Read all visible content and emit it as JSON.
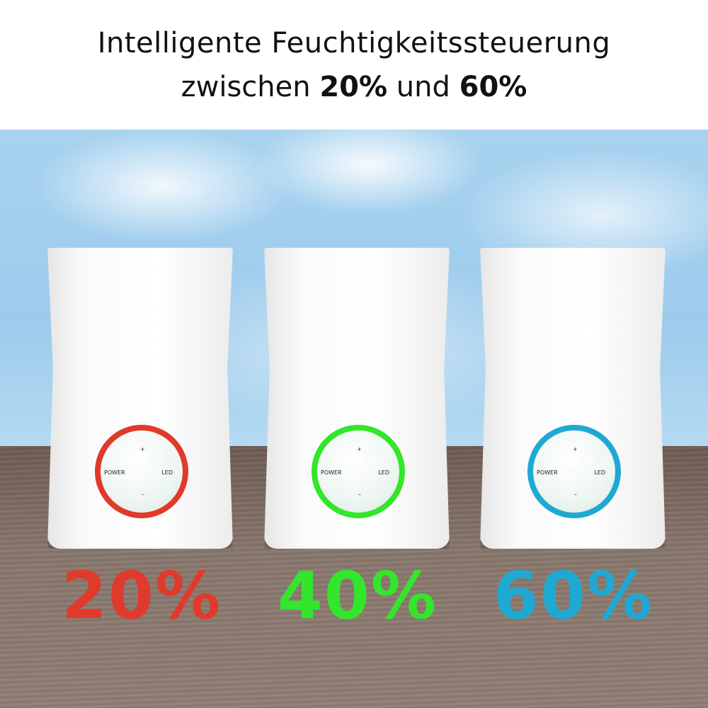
{
  "header": {
    "line1": "Intelligente Feuchtigkeitssteuerung",
    "line2_pre": "zwischen ",
    "line2_a": "20%",
    "line2_mid": " und ",
    "line2_b": "60%"
  },
  "devices": [
    {
      "plus": "+",
      "minus": "–",
      "power": "POWER",
      "led": "LED",
      "percent": "20%",
      "color": "#e03a2c"
    },
    {
      "plus": "+",
      "minus": "–",
      "power": "POWER",
      "led": "LED",
      "percent": "40%",
      "color": "#33e62b"
    },
    {
      "plus": "+",
      "minus": "–",
      "power": "POWER",
      "led": "LED",
      "percent": "60%",
      "color": "#1fa9d2"
    }
  ]
}
